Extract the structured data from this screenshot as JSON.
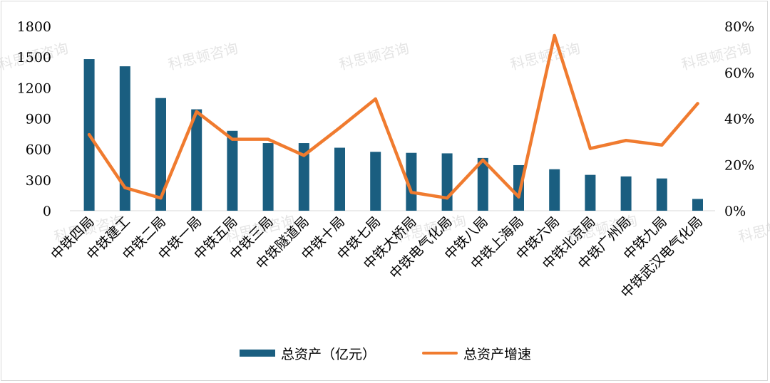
{
  "chart_data": {
    "type": "bar",
    "categories": [
      "中铁四局",
      "中铁建工",
      "中铁二局",
      "中铁一局",
      "中铁五局",
      "中铁三局",
      "中铁隧道局",
      "中铁十局",
      "中铁七局",
      "中铁大桥局",
      "中铁电气化局",
      "中铁八局",
      "中铁上海局",
      "中铁六局",
      "中铁北京局",
      "中铁广州局",
      "中铁九局",
      "中铁武汉电气化局"
    ],
    "series": [
      {
        "name": "总资产（亿元）",
        "type": "bar",
        "axis": "left",
        "color": "#1a5e80",
        "values": [
          1480,
          1410,
          1100,
          990,
          780,
          660,
          660,
          615,
          575,
          565,
          560,
          515,
          445,
          405,
          350,
          335,
          315,
          115
        ]
      },
      {
        "name": "总资产增速",
        "type": "line",
        "axis": "right",
        "color": "#f07b2f",
        "unit": "%",
        "values": [
          33,
          10,
          5.5,
          43,
          31,
          31,
          24,
          36,
          48.5,
          8,
          5.5,
          22,
          6,
          76,
          27,
          30.5,
          28.5,
          46.5
        ]
      }
    ],
    "y_left": {
      "ylim": [
        0,
        1800
      ],
      "ticks": [
        "0",
        "300",
        "600",
        "900",
        "1200",
        "1500",
        "1800"
      ]
    },
    "y_right": {
      "ylim": [
        0,
        80
      ],
      "ticks": [
        "0%",
        "20%",
        "40%",
        "60%",
        "80%"
      ]
    },
    "legend_position": "bottom",
    "grid": false,
    "watermark": "科思顿咨询"
  }
}
